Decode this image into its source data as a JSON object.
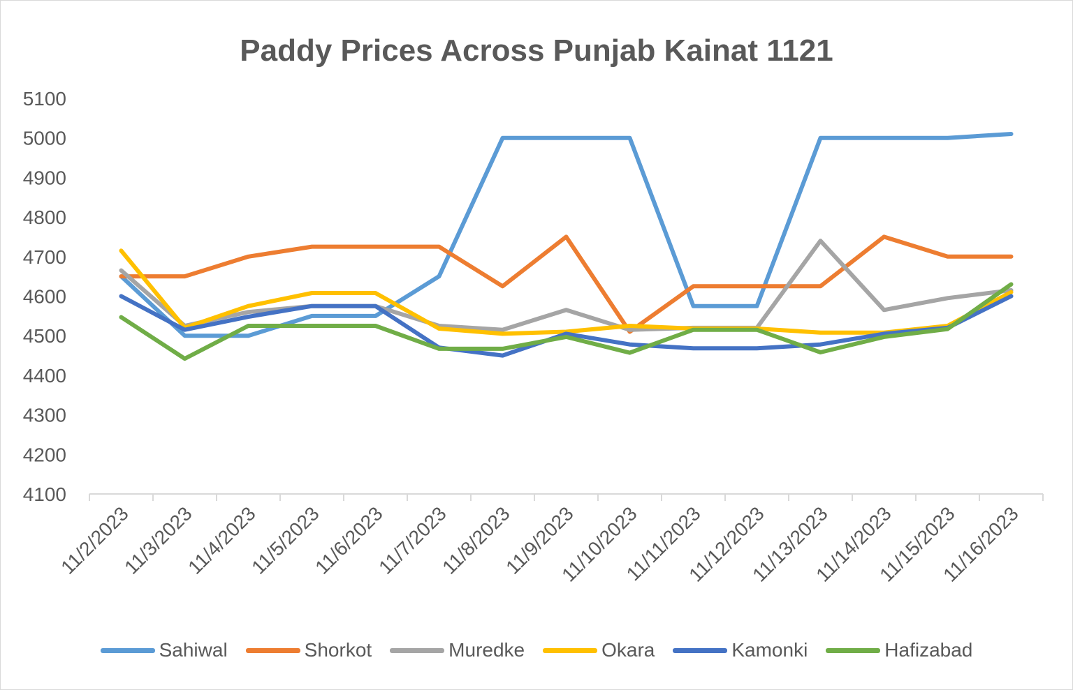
{
  "chart_data": {
    "type": "line",
    "title": "Paddy Prices Across Punjab Kainat 1121",
    "xlabel": "",
    "ylabel": "",
    "ylim": [
      4100,
      5100
    ],
    "ytick_step": 100,
    "grid": false,
    "legend_position": "bottom",
    "categories": [
      "11/2/2023",
      "11/3/2023",
      "11/4/2023",
      "11/5/2023",
      "11/6/2023",
      "11/7/2023",
      "11/8/2023",
      "11/9/2023",
      "11/10/2023",
      "11/11/2023",
      "11/12/2023",
      "11/13/2023",
      "11/14/2023",
      "11/15/2023",
      "11/16/2023"
    ],
    "series": [
      {
        "name": "Sahiwal",
        "color": "#5b9bd5",
        "values": [
          4650,
          4500,
          4500,
          4550,
          4550,
          4650,
          5000,
          5000,
          5000,
          4575,
          4575,
          5000,
          5000,
          5000,
          5010
        ]
      },
      {
        "name": "Shorkot",
        "color": "#ed7d31",
        "values": [
          4650,
          4650,
          4700,
          4725,
          4725,
          4725,
          4625,
          4750,
          4510,
          4625,
          4625,
          4625,
          4750,
          4700,
          4700
        ]
      },
      {
        "name": "Muredke",
        "color": "#a5a5a5",
        "values": [
          4665,
          4525,
          4560,
          4575,
          4575,
          4525,
          4515,
          4565,
          4515,
          4520,
          4520,
          4740,
          4565,
          4595,
          4615
        ]
      },
      {
        "name": "Okara",
        "color": "#ffc000",
        "values": [
          4715,
          4520,
          4575,
          4608,
          4608,
          4518,
          4505,
          4510,
          4525,
          4518,
          4518,
          4508,
          4508,
          4525,
          4610
        ]
      },
      {
        "name": "Kamonki",
        "color": "#4472c4",
        "values": [
          4600,
          4515,
          4548,
          4575,
          4575,
          4470,
          4450,
          4505,
          4478,
          4468,
          4468,
          4478,
          4505,
          4520,
          4600
        ]
      },
      {
        "name": "Hafizabad",
        "color": "#70ad47",
        "values": [
          4547,
          4442,
          4525,
          4525,
          4525,
          4467,
          4467,
          4497,
          4457,
          4515,
          4515,
          4458,
          4497,
          4517,
          4630
        ]
      }
    ]
  }
}
